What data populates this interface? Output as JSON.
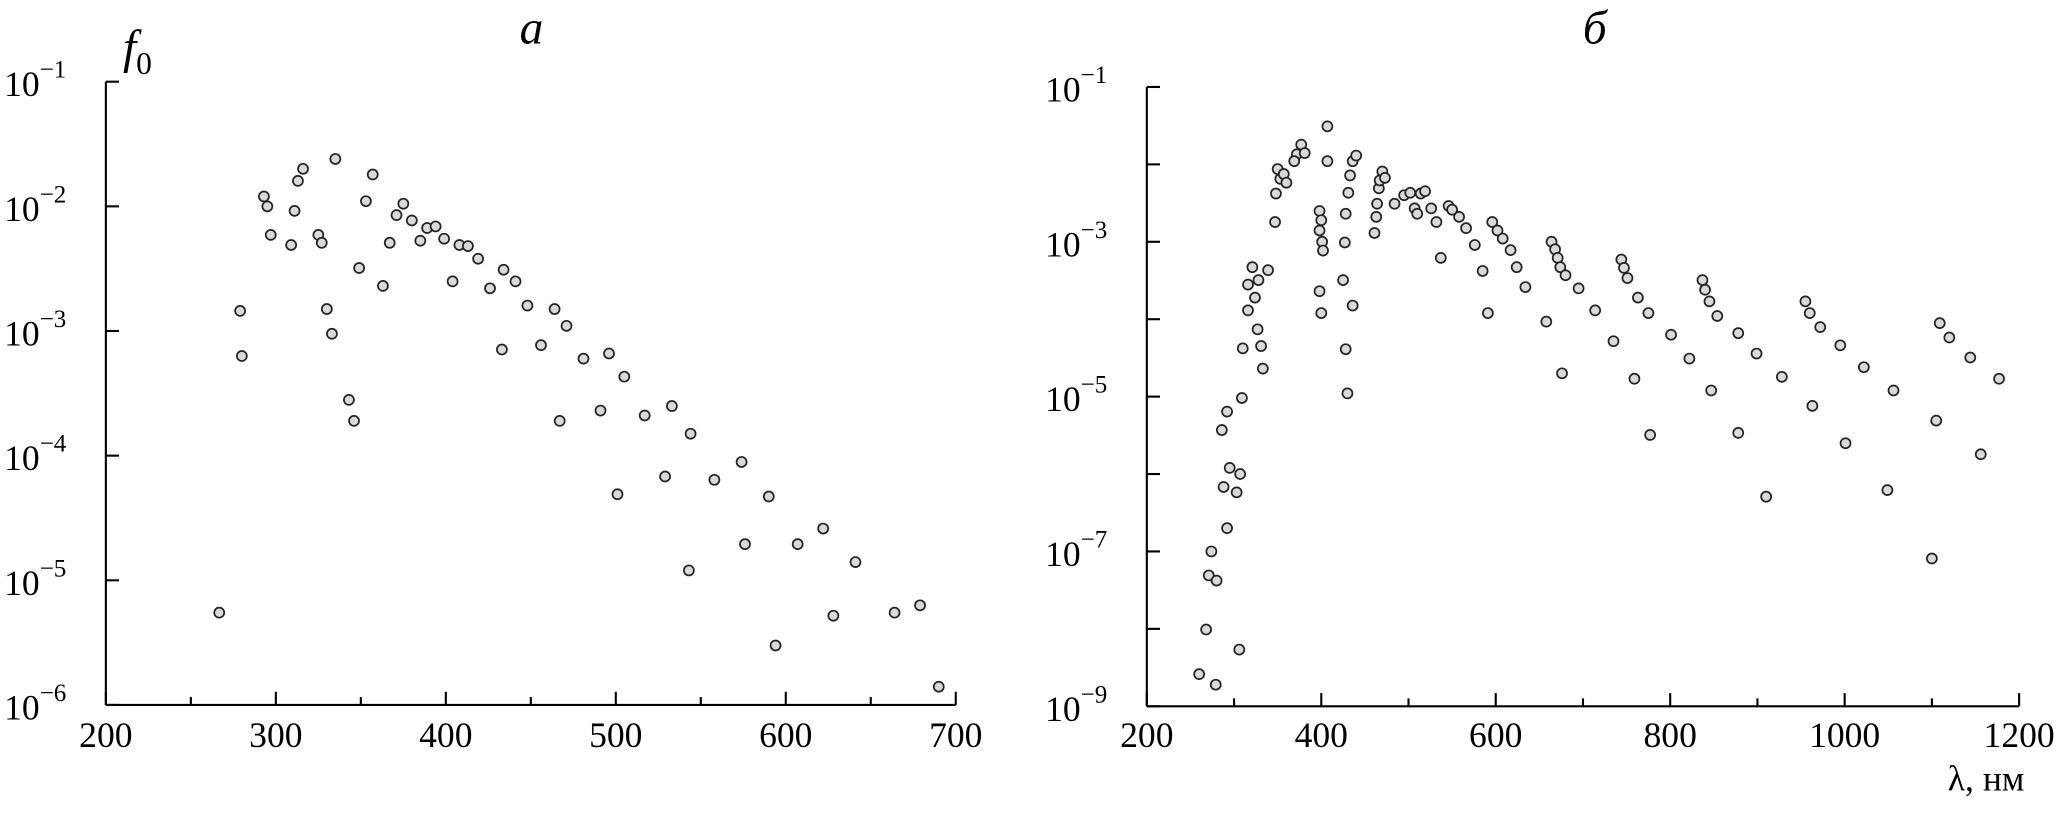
{
  "chart_data": [
    {
      "type": "scatter",
      "title": "а",
      "ylabel": "f",
      "ylabel_sub": "0",
      "log_y": true,
      "color": "#d9d9d9",
      "edge_color": "#222222",
      "xlim": [
        200,
        700
      ],
      "ylim": [
        1e-06,
        0.1
      ],
      "xticks": [
        200,
        300,
        400,
        500,
        600,
        700
      ],
      "xminorticks": [
        250,
        350,
        450,
        550,
        650
      ],
      "yticks": [
        {
          "value": 0.1,
          "label": "10",
          "exp": "−1"
        },
        {
          "value": 0.01,
          "label": "10",
          "exp": "−2"
        },
        {
          "value": 0.001,
          "label": "10",
          "exp": "−3"
        },
        {
          "value": 0.0001,
          "label": "10",
          "exp": "−4"
        },
        {
          "value": 1e-05,
          "label": "10",
          "exp": "−5"
        },
        {
          "value": 1e-06,
          "label": "10",
          "exp": "−6"
        }
      ],
      "yminorticks": [],
      "x": [
        266.7,
        279,
        280,
        293,
        295,
        297,
        309,
        311,
        313,
        316,
        325,
        327,
        330,
        333,
        335,
        343,
        346,
        349,
        353,
        357,
        363,
        367,
        371,
        375,
        380,
        385,
        389,
        394,
        399,
        404,
        408,
        413,
        419,
        426,
        433,
        434,
        441,
        448,
        456,
        464,
        467,
        471,
        481,
        491,
        496,
        501,
        505,
        517,
        529,
        533,
        544,
        543,
        558,
        574,
        576,
        590,
        594,
        607,
        622,
        628,
        641,
        664,
        679,
        690
      ],
      "y": [
        5.5e-06,
        0.00145,
        0.00063,
        0.012,
        0.01,
        0.0059,
        0.0049,
        0.0092,
        0.016,
        0.02,
        0.0059,
        0.0051,
        0.0015,
        0.00095,
        0.024,
        0.00028,
        0.00019,
        0.0032,
        0.011,
        0.018,
        0.0023,
        0.0051,
        0.0085,
        0.0105,
        0.0077,
        0.0053,
        0.0067,
        0.0069,
        0.0055,
        0.0025,
        0.0049,
        0.0048,
        0.0038,
        0.0022,
        0.00071,
        0.0031,
        0.0025,
        0.0016,
        0.00077,
        0.0015,
        0.00019,
        0.0011,
        0.0006,
        0.00023,
        0.00066,
        4.9e-05,
        0.00043,
        0.00021,
        6.8e-05,
        0.00025,
        0.00015,
        1.2e-05,
        6.4e-05,
        8.9e-05,
        1.95e-05,
        4.7e-05,
        3e-06,
        1.95e-05,
        2.6e-05,
        5.2e-06,
        1.4e-05,
        5.5e-06,
        6.3e-06,
        1.4e-06
      ]
    },
    {
      "type": "scatter",
      "title": "б",
      "xlabel": "λ, нм",
      "log_y": true,
      "color": "#d9d9d9",
      "edge_color": "#222222",
      "xlim": [
        200,
        1200
      ],
      "ylim": [
        1e-09,
        0.1
      ],
      "xticks": [
        200,
        400,
        600,
        800,
        1000,
        1200
      ],
      "xminorticks": [
        300,
        500,
        700,
        900,
        1100
      ],
      "yticks": [
        {
          "value": 0.1,
          "label": "10",
          "exp": "−1"
        },
        {
          "value": 0.001,
          "label": "10",
          "exp": "−3"
        },
        {
          "value": 1e-05,
          "label": "10",
          "exp": "−5"
        },
        {
          "value": 1e-07,
          "label": "10",
          "exp": "−7"
        },
        {
          "value": 1e-09,
          "label": "10",
          "exp": "−9"
        }
      ],
      "yminorticks": [
        0.01,
        0.0001,
        1e-06,
        1e-08
      ],
      "x": [
        260,
        279,
        268,
        271,
        274,
        280,
        292,
        288,
        295,
        303,
        307,
        286,
        292,
        306,
        309,
        310,
        316,
        316,
        321,
        324,
        328,
        327,
        331,
        333,
        339,
        347,
        348,
        350,
        353,
        357,
        360,
        372,
        377,
        381,
        369,
        398,
        400,
        398,
        401,
        402,
        398,
        400,
        407,
        407,
        425,
        428,
        430,
        427,
        428,
        431,
        433,
        436,
        440,
        436,
        461,
        463,
        464,
        466,
        467,
        470,
        473,
        484,
        495,
        502,
        507,
        510,
        514,
        519,
        526,
        532,
        537,
        546,
        550,
        558,
        566,
        576,
        585,
        591,
        596,
        602,
        608,
        617,
        624,
        634,
        658,
        664,
        668,
        671,
        674,
        680,
        676,
        695,
        714,
        735,
        744,
        747,
        751,
        763,
        775,
        759,
        777,
        801,
        822,
        837,
        840,
        845,
        854,
        847,
        878,
        878,
        899,
        910,
        928,
        955,
        960,
        972,
        963,
        995,
        1001,
        1022,
        1049,
        1056,
        1100,
        1105,
        1109,
        1120,
        1144,
        1156,
        1177
      ],
      "y": [
        2.6e-09,
        1.9e-09,
        9.8e-09,
        4.9e-08,
        1e-07,
        4.2e-08,
        2e-07,
        6.8e-07,
        1.2e-06,
        5.8e-07,
        1e-06,
        3.7e-06,
        6.4e-06,
        5.4e-09,
        9.6e-06,
        4.2e-05,
        0.00013,
        0.00028,
        0.00047,
        0.00019,
        0.00032,
        7.4e-05,
        4.5e-05,
        2.3e-05,
        0.00043,
        0.0018,
        0.0042,
        0.0087,
        0.0065,
        0.0075,
        0.0058,
        0.0135,
        0.018,
        0.014,
        0.011,
        0.0025,
        0.0019,
        0.0014,
        0.001,
        0.00077,
        0.00023,
        0.00012,
        0.031,
        0.011,
        0.00032,
        4.1e-05,
        1.1e-05,
        0.00098,
        0.0023,
        0.0043,
        0.0072,
        0.011,
        0.013,
        0.00015,
        0.0013,
        0.0021,
        0.0031,
        0.0049,
        0.0062,
        0.0081,
        0.0067,
        0.0031,
        0.004,
        0.0043,
        0.0027,
        0.0023,
        0.0042,
        0.0045,
        0.0027,
        0.0018,
        0.00062,
        0.0029,
        0.0026,
        0.0021,
        0.0015,
        0.00091,
        0.00042,
        0.00012,
        0.0018,
        0.0014,
        0.0011,
        0.00078,
        0.00047,
        0.00026,
        9.3e-05,
        0.001,
        0.0008,
        0.00062,
        0.00047,
        0.00037,
        2e-05,
        0.00025,
        0.00013,
        5.2e-05,
        0.00059,
        0.00046,
        0.00034,
        0.00019,
        0.00012,
        1.7e-05,
        3.2e-06,
        6.3e-05,
        3.1e-05,
        0.00032,
        0.00024,
        0.00017,
        0.00011,
        1.2e-05,
        6.6e-05,
        3.4e-06,
        3.6e-05,
        5.1e-07,
        1.8e-05,
        0.00017,
        0.00012,
        7.9e-05,
        7.6e-06,
        4.6e-05,
        2.5e-06,
        2.4e-05,
        6.2e-07,
        1.2e-05,
        8.1e-08,
        4.9e-06,
        8.9e-05,
        5.8e-05,
        3.2e-05,
        1.8e-06,
        1.7e-05
      ]
    }
  ]
}
